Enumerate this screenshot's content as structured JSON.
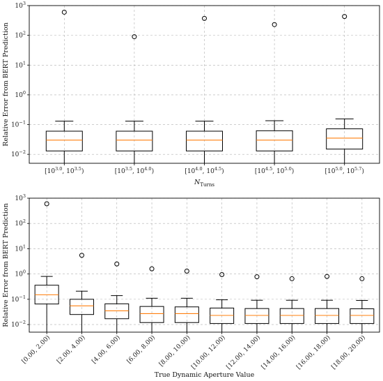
{
  "chart_data": [
    {
      "type": "box",
      "scale": "log",
      "ylabel": "Relative Error from BERT Prediction",
      "xlabel": "N",
      "xlabel_sub": "Turns",
      "ylim": [
        0.005,
        1000
      ],
      "yticks": [
        {
          "base": "10",
          "exp": "−2",
          "value": 0.01
        },
        {
          "base": "10",
          "exp": "−1",
          "value": 0.1
        },
        {
          "base": "10",
          "exp": "0",
          "value": 1
        },
        {
          "base": "10",
          "exp": "1",
          "value": 10
        },
        {
          "base": "10",
          "exp": "2",
          "value": 100
        },
        {
          "base": "10",
          "exp": "3",
          "value": 1000
        }
      ],
      "grid": true,
      "categories": [
        {
          "lo": "10",
          "lo_exp": "3.0",
          "hi": "10",
          "hi_exp": "3.5"
        },
        {
          "lo": "10",
          "lo_exp": "3.5",
          "hi": "10",
          "hi_exp": "4.0"
        },
        {
          "lo": "10",
          "lo_exp": "4.0",
          "hi": "10",
          "hi_exp": "4.5"
        },
        {
          "lo": "10",
          "lo_exp": "4.5",
          "hi": "10",
          "hi_exp": "5.0"
        },
        {
          "lo": "10",
          "lo_exp": "5.0",
          "hi": "10",
          "hi_exp": "5.7"
        }
      ],
      "boxes": [
        {
          "whislo": 0.0,
          "q1": 0.013,
          "med": 0.03,
          "q3": 0.06,
          "whishi": 0.13,
          "fliers": [
            600
          ]
        },
        {
          "whislo": 0.0,
          "q1": 0.013,
          "med": 0.03,
          "q3": 0.06,
          "whishi": 0.13,
          "fliers": [
            90
          ]
        },
        {
          "whislo": 0.0,
          "q1": 0.013,
          "med": 0.03,
          "q3": 0.06,
          "whishi": 0.13,
          "fliers": [
            370
          ]
        },
        {
          "whislo": 0.0,
          "q1": 0.013,
          "med": 0.03,
          "q3": 0.062,
          "whishi": 0.135,
          "fliers": [
            230
          ]
        },
        {
          "whislo": 0.0,
          "q1": 0.015,
          "med": 0.035,
          "q3": 0.072,
          "whishi": 0.155,
          "fliers": [
            430
          ]
        }
      ]
    },
    {
      "type": "box",
      "scale": "log",
      "ylabel": "Relative Error from BERT Prediction",
      "xlabel": "True Dynamic Aperture Value",
      "ylim": [
        0.005,
        1000
      ],
      "yticks": [
        {
          "base": "10",
          "exp": "−2",
          "value": 0.01
        },
        {
          "base": "10",
          "exp": "−1",
          "value": 0.1
        },
        {
          "base": "10",
          "exp": "0",
          "value": 1
        },
        {
          "base": "10",
          "exp": "1",
          "value": 10
        },
        {
          "base": "10",
          "exp": "2",
          "value": 100
        },
        {
          "base": "10",
          "exp": "3",
          "value": 1000
        }
      ],
      "grid": true,
      "categories": [
        "[0.00, 2.00)",
        "[2.00, 4.00)",
        "[4.00, 6.00)",
        "[6.00, 8.00)",
        "[8.00, 10.00)",
        "[10.00, 12.00)",
        "[12.00, 14.00)",
        "[14.00, 16.00)",
        "[16.00, 18.00)",
        "[18.00, 20.00)"
      ],
      "boxes": [
        {
          "whislo": 0.0,
          "q1": 0.065,
          "med": 0.15,
          "q3": 0.36,
          "whishi": 0.8,
          "fliers": [
            600
          ]
        },
        {
          "whislo": 0.0,
          "q1": 0.025,
          "med": 0.055,
          "q3": 0.1,
          "whishi": 0.21,
          "fliers": [
            5.5
          ]
        },
        {
          "whislo": 0.0,
          "q1": 0.017,
          "med": 0.035,
          "q3": 0.066,
          "whishi": 0.14,
          "fliers": [
            2.5
          ]
        },
        {
          "whislo": 0.0,
          "q1": 0.012,
          "med": 0.027,
          "q3": 0.052,
          "whishi": 0.11,
          "fliers": [
            1.6
          ]
        },
        {
          "whislo": 0.0,
          "q1": 0.012,
          "med": 0.027,
          "q3": 0.05,
          "whishi": 0.11,
          "fliers": [
            1.3
          ]
        },
        {
          "whislo": 0.0,
          "q1": 0.011,
          "med": 0.023,
          "q3": 0.045,
          "whishi": 0.095,
          "fliers": [
            0.95
          ]
        },
        {
          "whislo": 0.0,
          "q1": 0.011,
          "med": 0.023,
          "q3": 0.043,
          "whishi": 0.092,
          "fliers": [
            0.78
          ]
        },
        {
          "whislo": 0.0,
          "q1": 0.011,
          "med": 0.023,
          "q3": 0.043,
          "whishi": 0.092,
          "fliers": [
            0.65
          ]
        },
        {
          "whislo": 0.0,
          "q1": 0.011,
          "med": 0.023,
          "q3": 0.043,
          "whishi": 0.092,
          "fliers": [
            0.8
          ]
        },
        {
          "whislo": 0.0,
          "q1": 0.011,
          "med": 0.023,
          "q3": 0.042,
          "whishi": 0.09,
          "fliers": [
            0.65
          ]
        }
      ]
    }
  ],
  "colors": {
    "median": "#ff7f0e",
    "box": "#000000",
    "grid": "#b0b0b0"
  }
}
